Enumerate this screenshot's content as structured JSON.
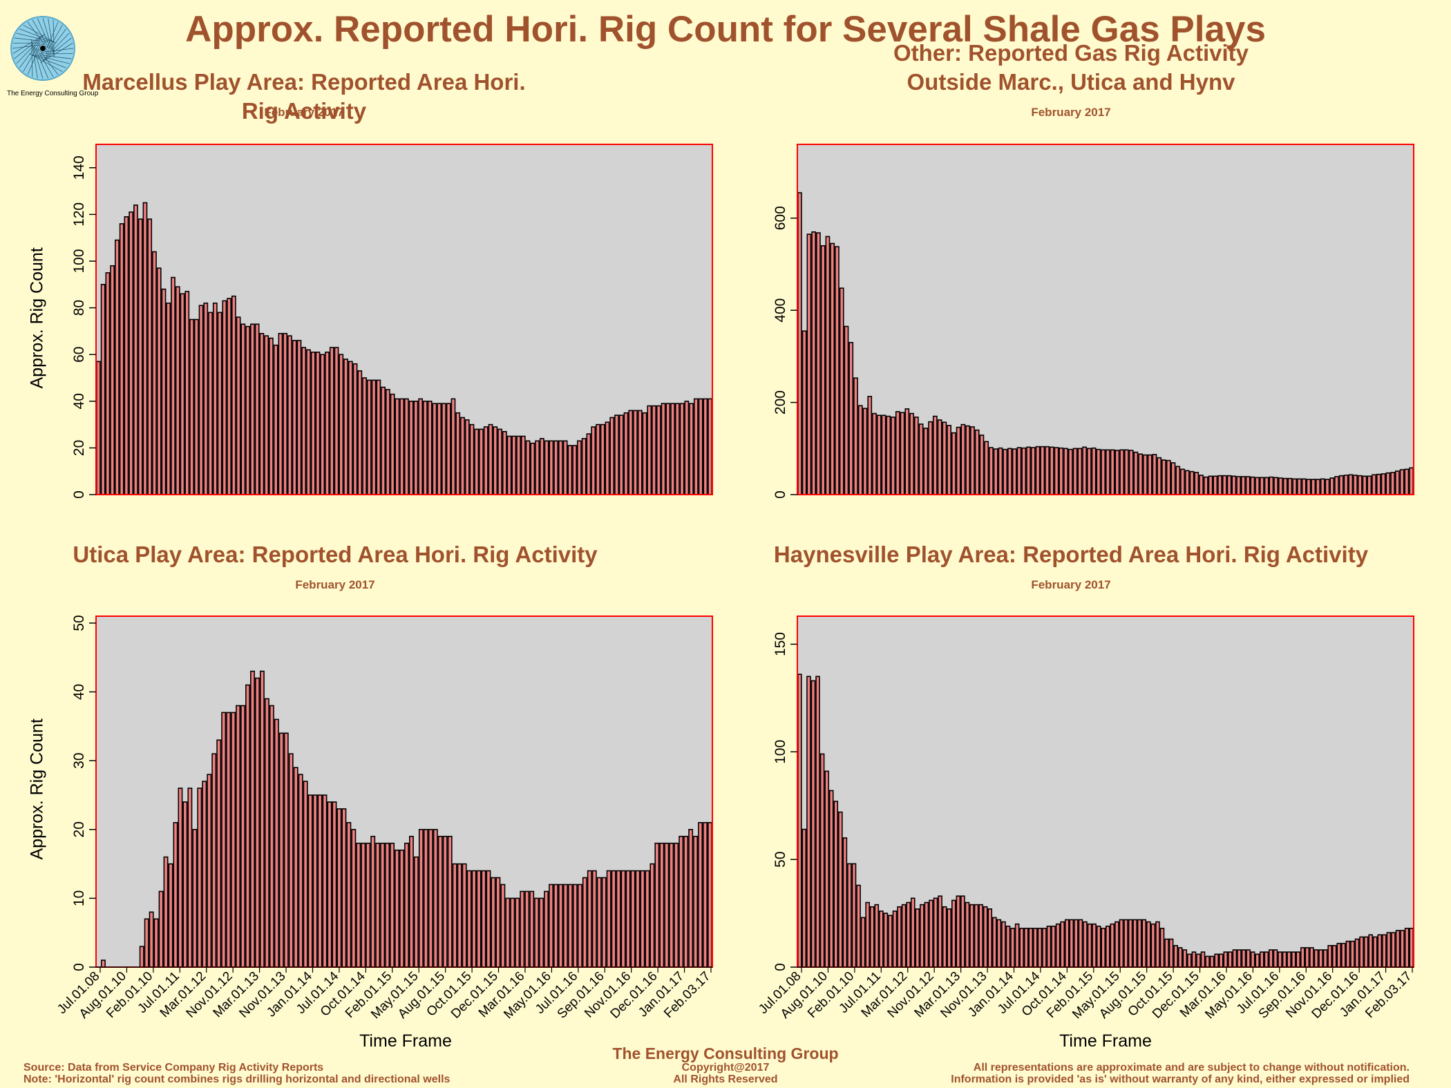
{
  "main_title": "Approx. Reported Hori. Rig Count for Several Shale Gas Plays",
  "logo_text": "The Energy Consulting Group",
  "footer": {
    "source": "Source: Data from Service Company Rig Activity Reports",
    "note": "Note: 'Horizontal' rig count combines rigs drilling horizontal and directional wells",
    "company": "The Energy Consulting Group",
    "copyright": "Copyright@2017",
    "rights": "All Rights Reserved",
    "disclaimer1": "All representations are approximate and are subject to change without notification.",
    "disclaimer2": "Information is provided 'as is' without warranty of any kind, either expressed or implied"
  },
  "colors": {
    "bar": "#f08080",
    "plot_bg": "#d3d3d3",
    "frame": "#ff0000",
    "title": "#a0522d",
    "background": "#fffbcf"
  },
  "chart_data": [
    {
      "type": "bar",
      "title": "Marcellus Play Area: Reported Area Hori. Rig Activity",
      "subtitle": "February 2017",
      "ylabel": "Approx. Rig Count",
      "xlabel": "",
      "ylim": [
        0,
        150
      ],
      "yticks": [
        0,
        20,
        40,
        60,
        80,
        100,
        120,
        140
      ],
      "values": [
        57,
        90,
        95,
        98,
        109,
        116,
        119,
        121,
        124,
        118,
        125,
        118,
        104,
        97,
        88,
        82,
        93,
        89,
        86,
        87,
        75,
        75,
        81,
        82,
        78,
        82,
        78,
        83,
        84,
        85,
        76,
        73,
        72,
        73,
        73,
        69,
        68,
        67,
        64,
        69,
        69,
        68,
        66,
        66,
        63,
        62,
        61,
        61,
        60,
        61,
        63,
        63,
        60,
        58,
        57,
        56,
        53,
        50,
        49,
        49,
        49,
        46,
        45,
        43,
        41,
        41,
        41,
        40,
        40,
        41,
        40,
        40,
        39,
        39,
        39,
        39,
        41,
        35,
        33,
        32,
        30,
        28,
        28,
        29,
        30,
        29,
        28,
        27,
        25,
        25,
        25,
        25,
        23,
        22,
        23,
        24,
        23,
        23,
        23,
        23,
        23,
        21,
        21,
        23,
        24,
        26,
        29,
        30,
        30,
        31,
        33,
        34,
        34,
        35,
        36,
        36,
        36,
        35,
        38,
        38,
        38,
        39,
        39,
        39,
        39,
        39,
        40,
        39,
        41,
        41,
        41,
        41
      ]
    },
    {
      "type": "bar",
      "title": "Other: Reported Gas Rig Activity",
      "title2": "Outside Marc., Utica and Hynv",
      "subtitle": "February 2017",
      "ylabel": "",
      "xlabel": "",
      "ylim": [
        0,
        760
      ],
      "yticks": [
        0,
        200,
        400,
        600
      ],
      "values": [
        655,
        355,
        565,
        570,
        568,
        540,
        560,
        545,
        538,
        448,
        365,
        330,
        253,
        193,
        187,
        213,
        176,
        172,
        172,
        170,
        168,
        180,
        178,
        186,
        176,
        168,
        153,
        144,
        158,
        170,
        162,
        157,
        150,
        134,
        146,
        152,
        149,
        147,
        140,
        129,
        115,
        102,
        99,
        101,
        98,
        100,
        99,
        102,
        101,
        103,
        102,
        104,
        104,
        104,
        103,
        102,
        101,
        100,
        98,
        100,
        100,
        103,
        100,
        101,
        98,
        97,
        97,
        97,
        96,
        97,
        97,
        96,
        92,
        88,
        86,
        86,
        87,
        80,
        75,
        74,
        69,
        61,
        55,
        52,
        50,
        48,
        42,
        38,
        40,
        40,
        41,
        41,
        41,
        40,
        39,
        39,
        39,
        38,
        37,
        37,
        37,
        38,
        37,
        36,
        35,
        35,
        34,
        34,
        34,
        33,
        33,
        33,
        34,
        33,
        36,
        39,
        41,
        42,
        43,
        42,
        41,
        40,
        40,
        43,
        44,
        45,
        47,
        48,
        51,
        54,
        55,
        58
      ]
    },
    {
      "type": "bar",
      "title": "Utica Play Area: Reported Area Hori. Rig Activity",
      "subtitle": "February 2017",
      "ylabel": "Approx. Rig Count",
      "xlabel": "Time Frame",
      "ylim": [
        0,
        51
      ],
      "yticks": [
        0,
        10,
        20,
        30,
        40,
        50
      ],
      "values": [
        0,
        1,
        0,
        0,
        0,
        0,
        0,
        0,
        0,
        3,
        7,
        8,
        7,
        11,
        16,
        15,
        21,
        26,
        24,
        26,
        20,
        26,
        27,
        28,
        31,
        33,
        37,
        37,
        37,
        38,
        38,
        41,
        43,
        42,
        43,
        39,
        38,
        36,
        34,
        34,
        31,
        29,
        28,
        27,
        25,
        25,
        25,
        25,
        24,
        24,
        23,
        23,
        21,
        20,
        18,
        18,
        18,
        19,
        18,
        18,
        18,
        18,
        17,
        17,
        18,
        19,
        16,
        20,
        20,
        20,
        20,
        19,
        19,
        19,
        15,
        15,
        15,
        14,
        14,
        14,
        14,
        14,
        13,
        13,
        12,
        10,
        10,
        10,
        11,
        11,
        11,
        10,
        10,
        11,
        12,
        12,
        12,
        12,
        12,
        12,
        12,
        13,
        14,
        14,
        13,
        13,
        14,
        14,
        14,
        14,
        14,
        14,
        14,
        14,
        14,
        15,
        18,
        18,
        18,
        18,
        18,
        19,
        19,
        20,
        19,
        21,
        21,
        21
      ]
    },
    {
      "type": "bar",
      "title": "Haynesville Play Area: Reported Area Hori. Rig Activity",
      "subtitle": "February 2017",
      "ylabel": "",
      "xlabel": "Time Frame",
      "ylim": [
        0,
        163
      ],
      "yticks": [
        0,
        50,
        100,
        150
      ],
      "values": [
        136,
        64,
        135,
        133,
        135,
        99,
        91,
        82,
        77,
        72,
        60,
        48,
        48,
        38,
        23,
        30,
        28,
        29,
        26,
        25,
        24,
        26,
        28,
        29,
        30,
        32,
        27,
        29,
        30,
        31,
        32,
        33,
        28,
        27,
        31,
        33,
        33,
        30,
        29,
        29,
        29,
        28,
        27,
        23,
        22,
        21,
        19,
        18,
        20,
        18,
        18,
        18,
        18,
        18,
        18,
        19,
        19,
        20,
        21,
        22,
        22,
        22,
        22,
        21,
        20,
        20,
        19,
        18,
        19,
        20,
        21,
        22,
        22,
        22,
        22,
        22,
        22,
        21,
        20,
        21,
        18,
        13,
        13,
        10,
        9,
        8,
        6,
        7,
        6,
        7,
        5,
        5,
        6,
        6,
        7,
        7,
        8,
        8,
        8,
        8,
        7,
        6,
        7,
        7,
        8,
        8,
        7,
        7,
        7,
        7,
        7,
        9,
        9,
        9,
        8,
        8,
        8,
        10,
        10,
        11,
        11,
        12,
        12,
        13,
        14,
        14,
        15,
        14,
        15,
        15,
        16,
        16,
        17,
        17,
        18,
        18
      ]
    },
    {
      "type": "table",
      "note": "Date tick labels printed along the bottom axes (overlapping, partly illegible)",
      "ticks": [
        "Jul.01.08",
        "Aug.01.10",
        "Feb.01.10",
        "Jul.01.11",
        "Mar.01.12",
        "Nov.01.12",
        "Mar.01.13",
        "Nov.01.13",
        "Jan.01.14",
        "Jul.01.14",
        "Oct.01.14",
        "Feb.01.15",
        "May.01.15",
        "Aug.01.15",
        "Oct.01.15",
        "Dec.01.15",
        "Mar.01.16",
        "May.01.16",
        "Jul.01.16",
        "Sep.01.16",
        "Nov.01.16",
        "Dec.01.16",
        "Jan.01.17",
        "Feb.03.17"
      ]
    }
  ]
}
